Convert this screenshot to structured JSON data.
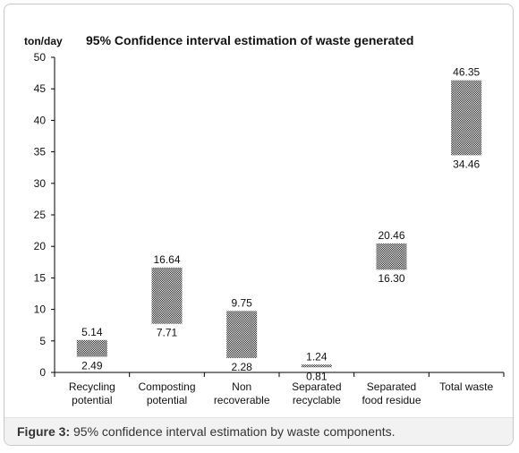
{
  "chart_data": {
    "type": "range-bar",
    "title": "95% Confidence interval estimation of waste generated",
    "ylabel": "ton/day",
    "ylim": [
      0,
      50
    ],
    "yticks": [
      0,
      5,
      10,
      15,
      20,
      25,
      30,
      35,
      40,
      45,
      50
    ],
    "grid": false,
    "categories": [
      [
        "Recycling",
        "potential"
      ],
      [
        "Composting",
        "potential"
      ],
      [
        "Non",
        "recoverable"
      ],
      [
        "Separated",
        "recyclable"
      ],
      [
        "Separated",
        "food residue"
      ],
      [
        "Total waste"
      ]
    ],
    "upper": [
      5.14,
      16.64,
      9.75,
      1.24,
      20.46,
      46.35
    ],
    "lower": [
      2.49,
      7.71,
      2.28,
      0.81,
      16.3,
      34.46
    ],
    "upper_labels": [
      "5.14",
      "16.64",
      "9.75",
      "1.24",
      "20.46",
      "46.35"
    ],
    "lower_labels": [
      "2.49",
      "7.71",
      "2.28",
      "0.81",
      "16.30",
      "34.46"
    ]
  },
  "caption": {
    "label": "Figure 3:",
    "text": " 95% confidence interval estimation by waste components."
  }
}
